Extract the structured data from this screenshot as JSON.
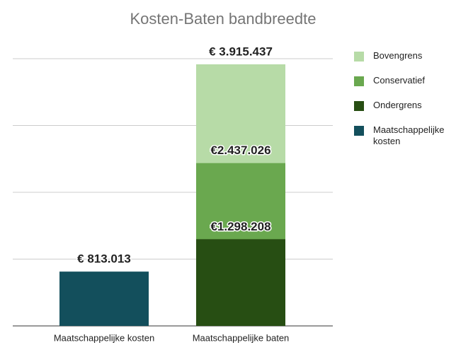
{
  "chart_data": {
    "type": "bar",
    "title": "Kosten-Baten bandbreedte",
    "categories": [
      "Maatschappelijke kosten",
      "Maatschappelijke baten"
    ],
    "series": [
      {
        "name": "Bovengrens",
        "color": "#b7dba7",
        "values": [
          null,
          3915437
        ],
        "value_labels": [
          null,
          "€ 3.915.437"
        ]
      },
      {
        "name": "Conservatief",
        "color": "#6aa84f",
        "values": [
          null,
          2437026
        ],
        "value_labels": [
          null,
          "€2.437.026"
        ]
      },
      {
        "name": "Ondergrens",
        "color": "#274e13",
        "values": [
          null,
          1298208
        ],
        "value_labels": [
          null,
          "€1.298.208"
        ]
      },
      {
        "name": "Maatschappelijke\nkosten",
        "color": "#134f5c",
        "values": [
          813013,
          null
        ],
        "value_labels": [
          "€ 813.013",
          null
        ]
      }
    ],
    "ylim": [
      0,
      4000000
    ],
    "yticks": [
      0,
      1000000,
      2000000,
      3000000,
      4000000
    ],
    "grid": true,
    "legend": "right"
  }
}
